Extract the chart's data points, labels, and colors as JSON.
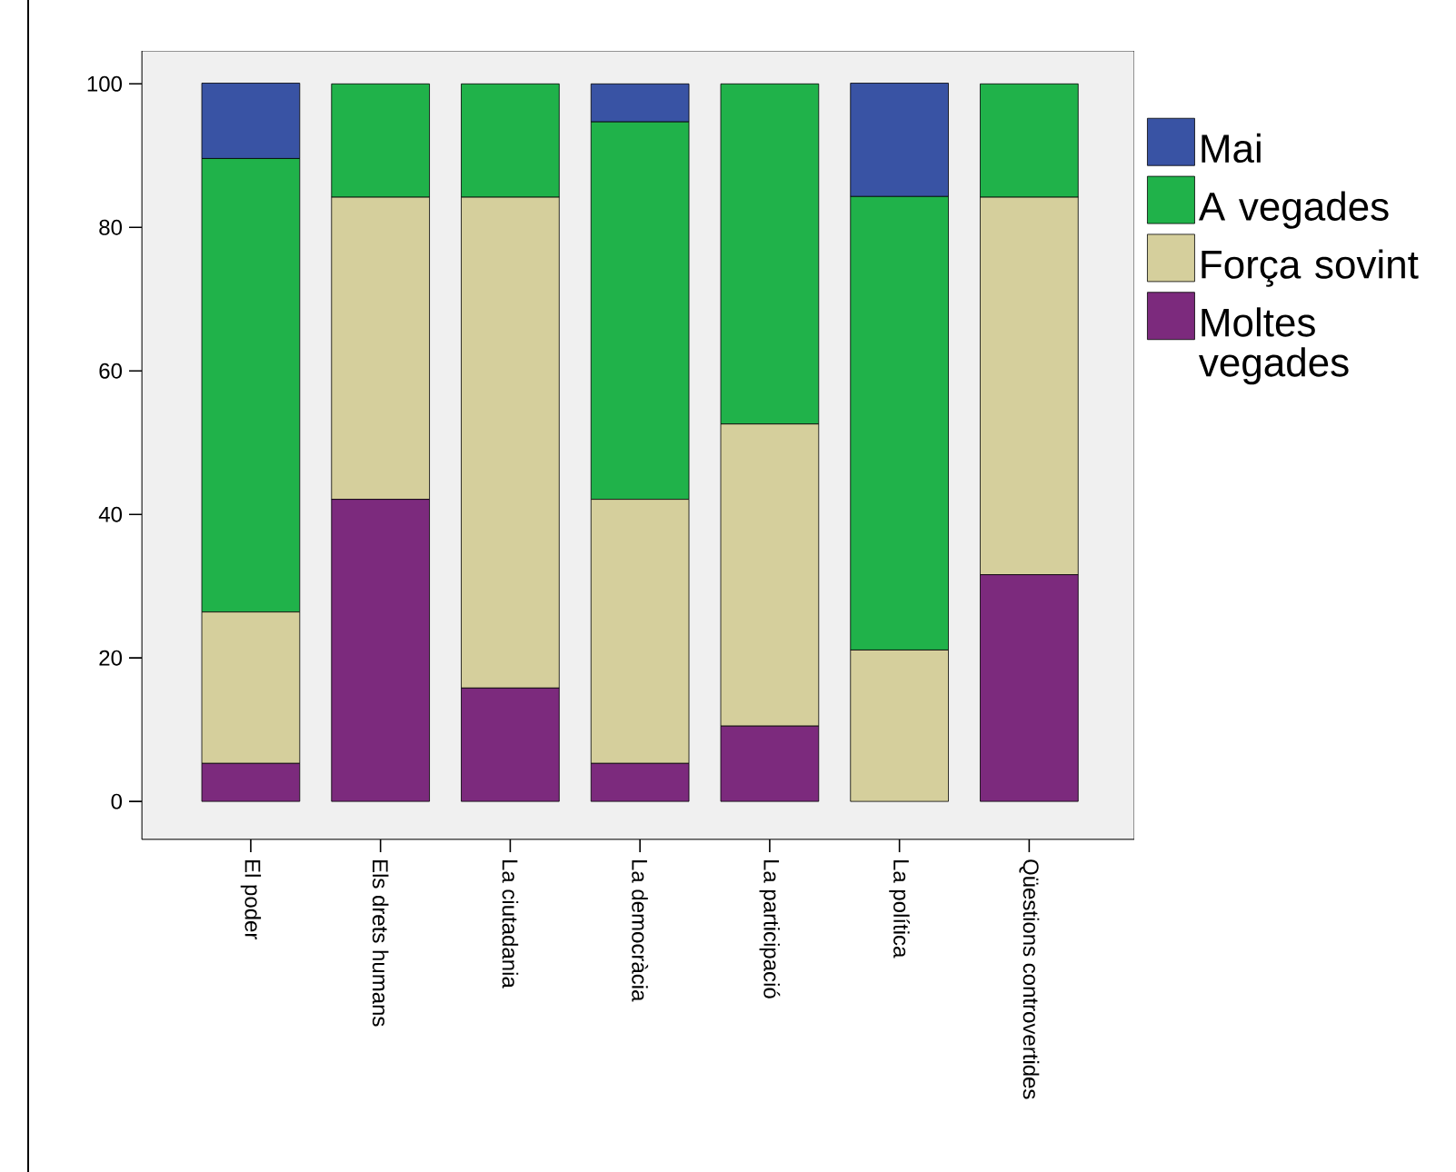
{
  "chart_data": {
    "type": "bar",
    "stacked": true,
    "categories": [
      "El poder",
      "Els drets humans",
      "La ciutadania",
      "La democràcia",
      "La participació",
      "La política",
      "Qüestions controvertides"
    ],
    "series": [
      {
        "name": "Moltes vegades",
        "color": "#7c2a7d",
        "values": [
          5.3,
          42.1,
          15.8,
          5.3,
          10.5,
          0,
          31.6
        ]
      },
      {
        "name": "Força sovint",
        "color": "#d5cf9c",
        "values": [
          21.1,
          42.1,
          68.4,
          36.8,
          42.1,
          21.1,
          52.6
        ]
      },
      {
        "name": "A vegades",
        "color": "#20b24a",
        "values": [
          63.2,
          15.8,
          15.8,
          52.6,
          47.4,
          63.2,
          15.8
        ]
      },
      {
        "name": "Mai",
        "color": "#3953a4",
        "values": [
          10.5,
          0,
          0,
          5.3,
          0,
          15.8,
          0
        ]
      }
    ],
    "ylim": [
      -5.3,
      104.6
    ],
    "yticks": [
      0,
      20,
      40,
      60,
      80,
      100
    ],
    "grid": false,
    "legend": "right"
  }
}
